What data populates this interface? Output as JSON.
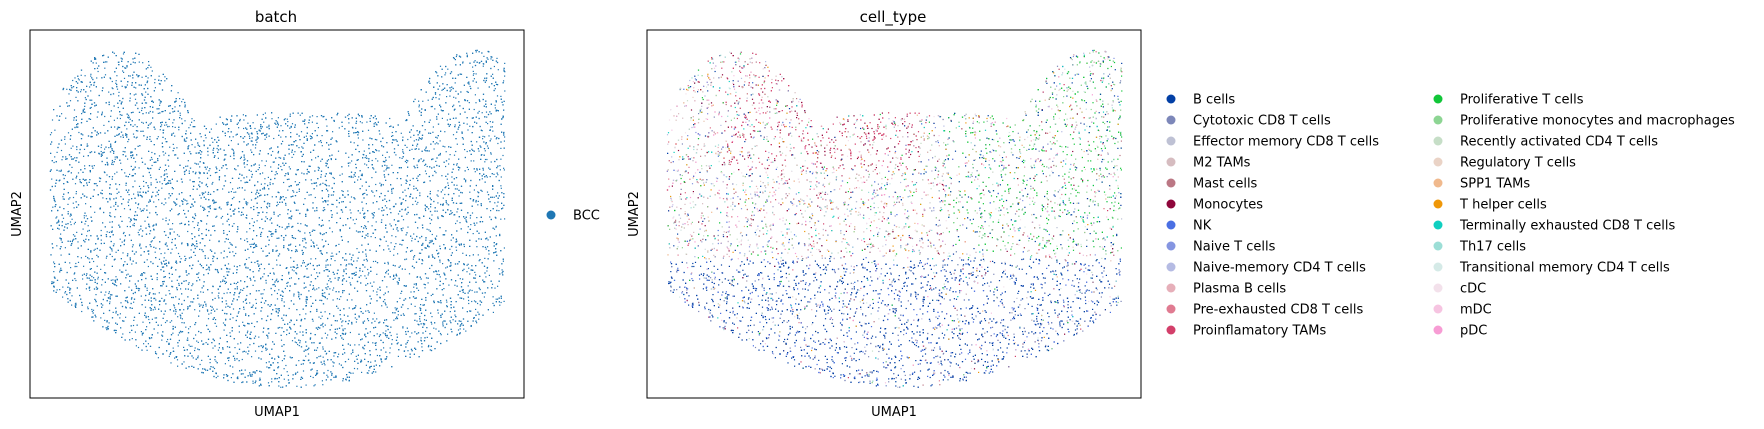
{
  "chart_data": [
    {
      "type": "scatter",
      "title": "batch",
      "xlabel": "UMAP1",
      "ylabel": "UMAP2",
      "grid": false,
      "legend_placement": "right-outside",
      "legend": [
        {
          "name": "BCC",
          "color": "#1f77b4"
        }
      ]
    },
    {
      "type": "scatter",
      "title": "cell_type",
      "xlabel": "UMAP1",
      "ylabel": "UMAP2",
      "grid": false,
      "legend_placement": "right-outside",
      "legend_columns": 2,
      "legend": [
        {
          "name": "B cells",
          "color": "#023fa5"
        },
        {
          "name": "Cytotoxic CD8 T cells",
          "color": "#7d87b9"
        },
        {
          "name": "Effector memory CD8 T cells",
          "color": "#bec1d4"
        },
        {
          "name": "M2 TAMs",
          "color": "#d6bcc0"
        },
        {
          "name": "Mast cells",
          "color": "#bb7784"
        },
        {
          "name": "Monocytes",
          "color": "#8e063b"
        },
        {
          "name": "NK",
          "color": "#4a6fe3"
        },
        {
          "name": "Naive T cells",
          "color": "#8595e1"
        },
        {
          "name": "Naive-memory CD4 T cells",
          "color": "#b5bbe3"
        },
        {
          "name": "Plasma B cells",
          "color": "#e6afb9"
        },
        {
          "name": "Pre-exhausted CD8 T cells",
          "color": "#e07b91"
        },
        {
          "name": "Proinflamatory TAMs",
          "color": "#d33f6a"
        },
        {
          "name": "Proliferative T cells",
          "color": "#11c638"
        },
        {
          "name": "Proliferative monocytes and macrophages",
          "color": "#8dd593"
        },
        {
          "name": "Recently activated CD4 T cells",
          "color": "#c6dec7"
        },
        {
          "name": "Regulatory T cells",
          "color": "#ead3c6"
        },
        {
          "name": "SPP1 TAMs",
          "color": "#f0b98d"
        },
        {
          "name": "T helper cells",
          "color": "#ef9708"
        },
        {
          "name": "Terminally exhausted CD8 T cells",
          "color": "#0fcfc0"
        },
        {
          "name": "Th17 cells",
          "color": "#9cded6"
        },
        {
          "name": "Transitional memory CD4 T cells",
          "color": "#d5eae7"
        },
        {
          "name": "cDC",
          "color": "#f3e1eb"
        },
        {
          "name": "mDC",
          "color": "#f6c4e1"
        },
        {
          "name": "pDC",
          "color": "#f79cd4"
        }
      ]
    }
  ]
}
